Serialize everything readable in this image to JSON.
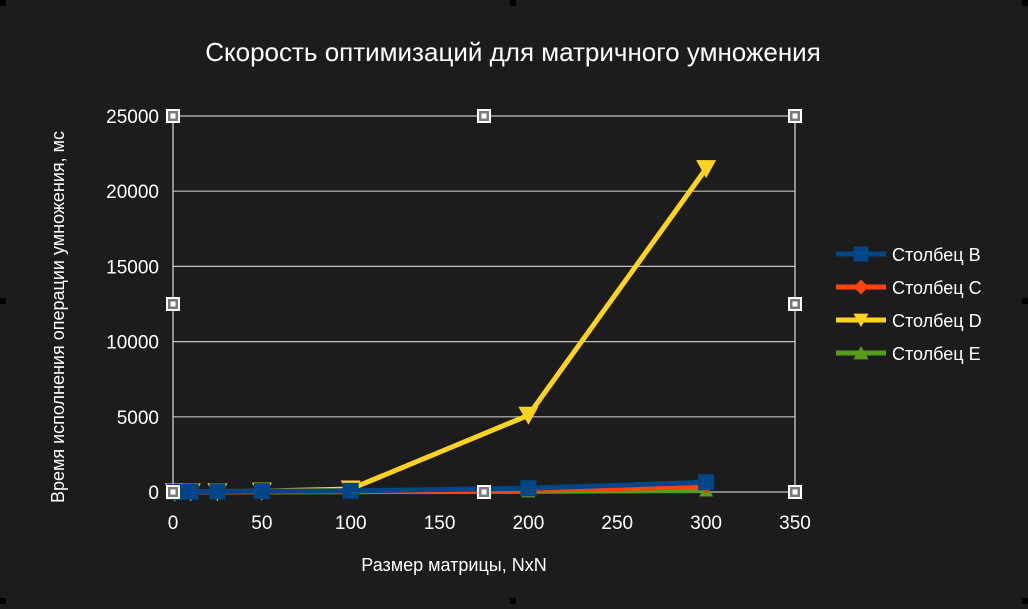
{
  "chart_data": {
    "type": "line",
    "title": "Скорость оптимизаций для матричного умножения",
    "xlabel": "Размер матрицы, NxN",
    "ylabel": "Время исполнения операции умножения, мс",
    "xlim": [
      0,
      350
    ],
    "ylim": [
      0,
      25000
    ],
    "x_ticks": [
      0,
      50,
      100,
      150,
      200,
      250,
      300,
      350
    ],
    "y_ticks": [
      0,
      5000,
      10000,
      15000,
      20000,
      25000
    ],
    "grid": true,
    "legend_position": "right",
    "series": [
      {
        "name": "Столбец B",
        "color": "#004586",
        "marker": "square",
        "x": [
          1,
          10,
          25,
          50,
          100,
          200,
          300
        ],
        "y": [
          0,
          20,
          40,
          60,
          80,
          250,
          650
        ]
      },
      {
        "name": "Столбец C",
        "color": "#ff420e",
        "marker": "diamond",
        "x": [
          1,
          10,
          25,
          50,
          100,
          200,
          300
        ],
        "y": [
          0,
          5,
          10,
          20,
          40,
          120,
          350
        ]
      },
      {
        "name": "Столбец D",
        "color": "#ffd320",
        "marker": "triangle-down",
        "x": [
          1,
          10,
          25,
          50,
          100,
          200,
          300
        ],
        "y": [
          0,
          5,
          20,
          60,
          200,
          5100,
          21500
        ]
      },
      {
        "name": "Столбец E",
        "color": "#579d1c",
        "marker": "triangle-up",
        "x": [
          1,
          10,
          25,
          50,
          100,
          200,
          300
        ],
        "y": [
          0,
          2,
          5,
          10,
          20,
          40,
          100
        ]
      }
    ]
  }
}
